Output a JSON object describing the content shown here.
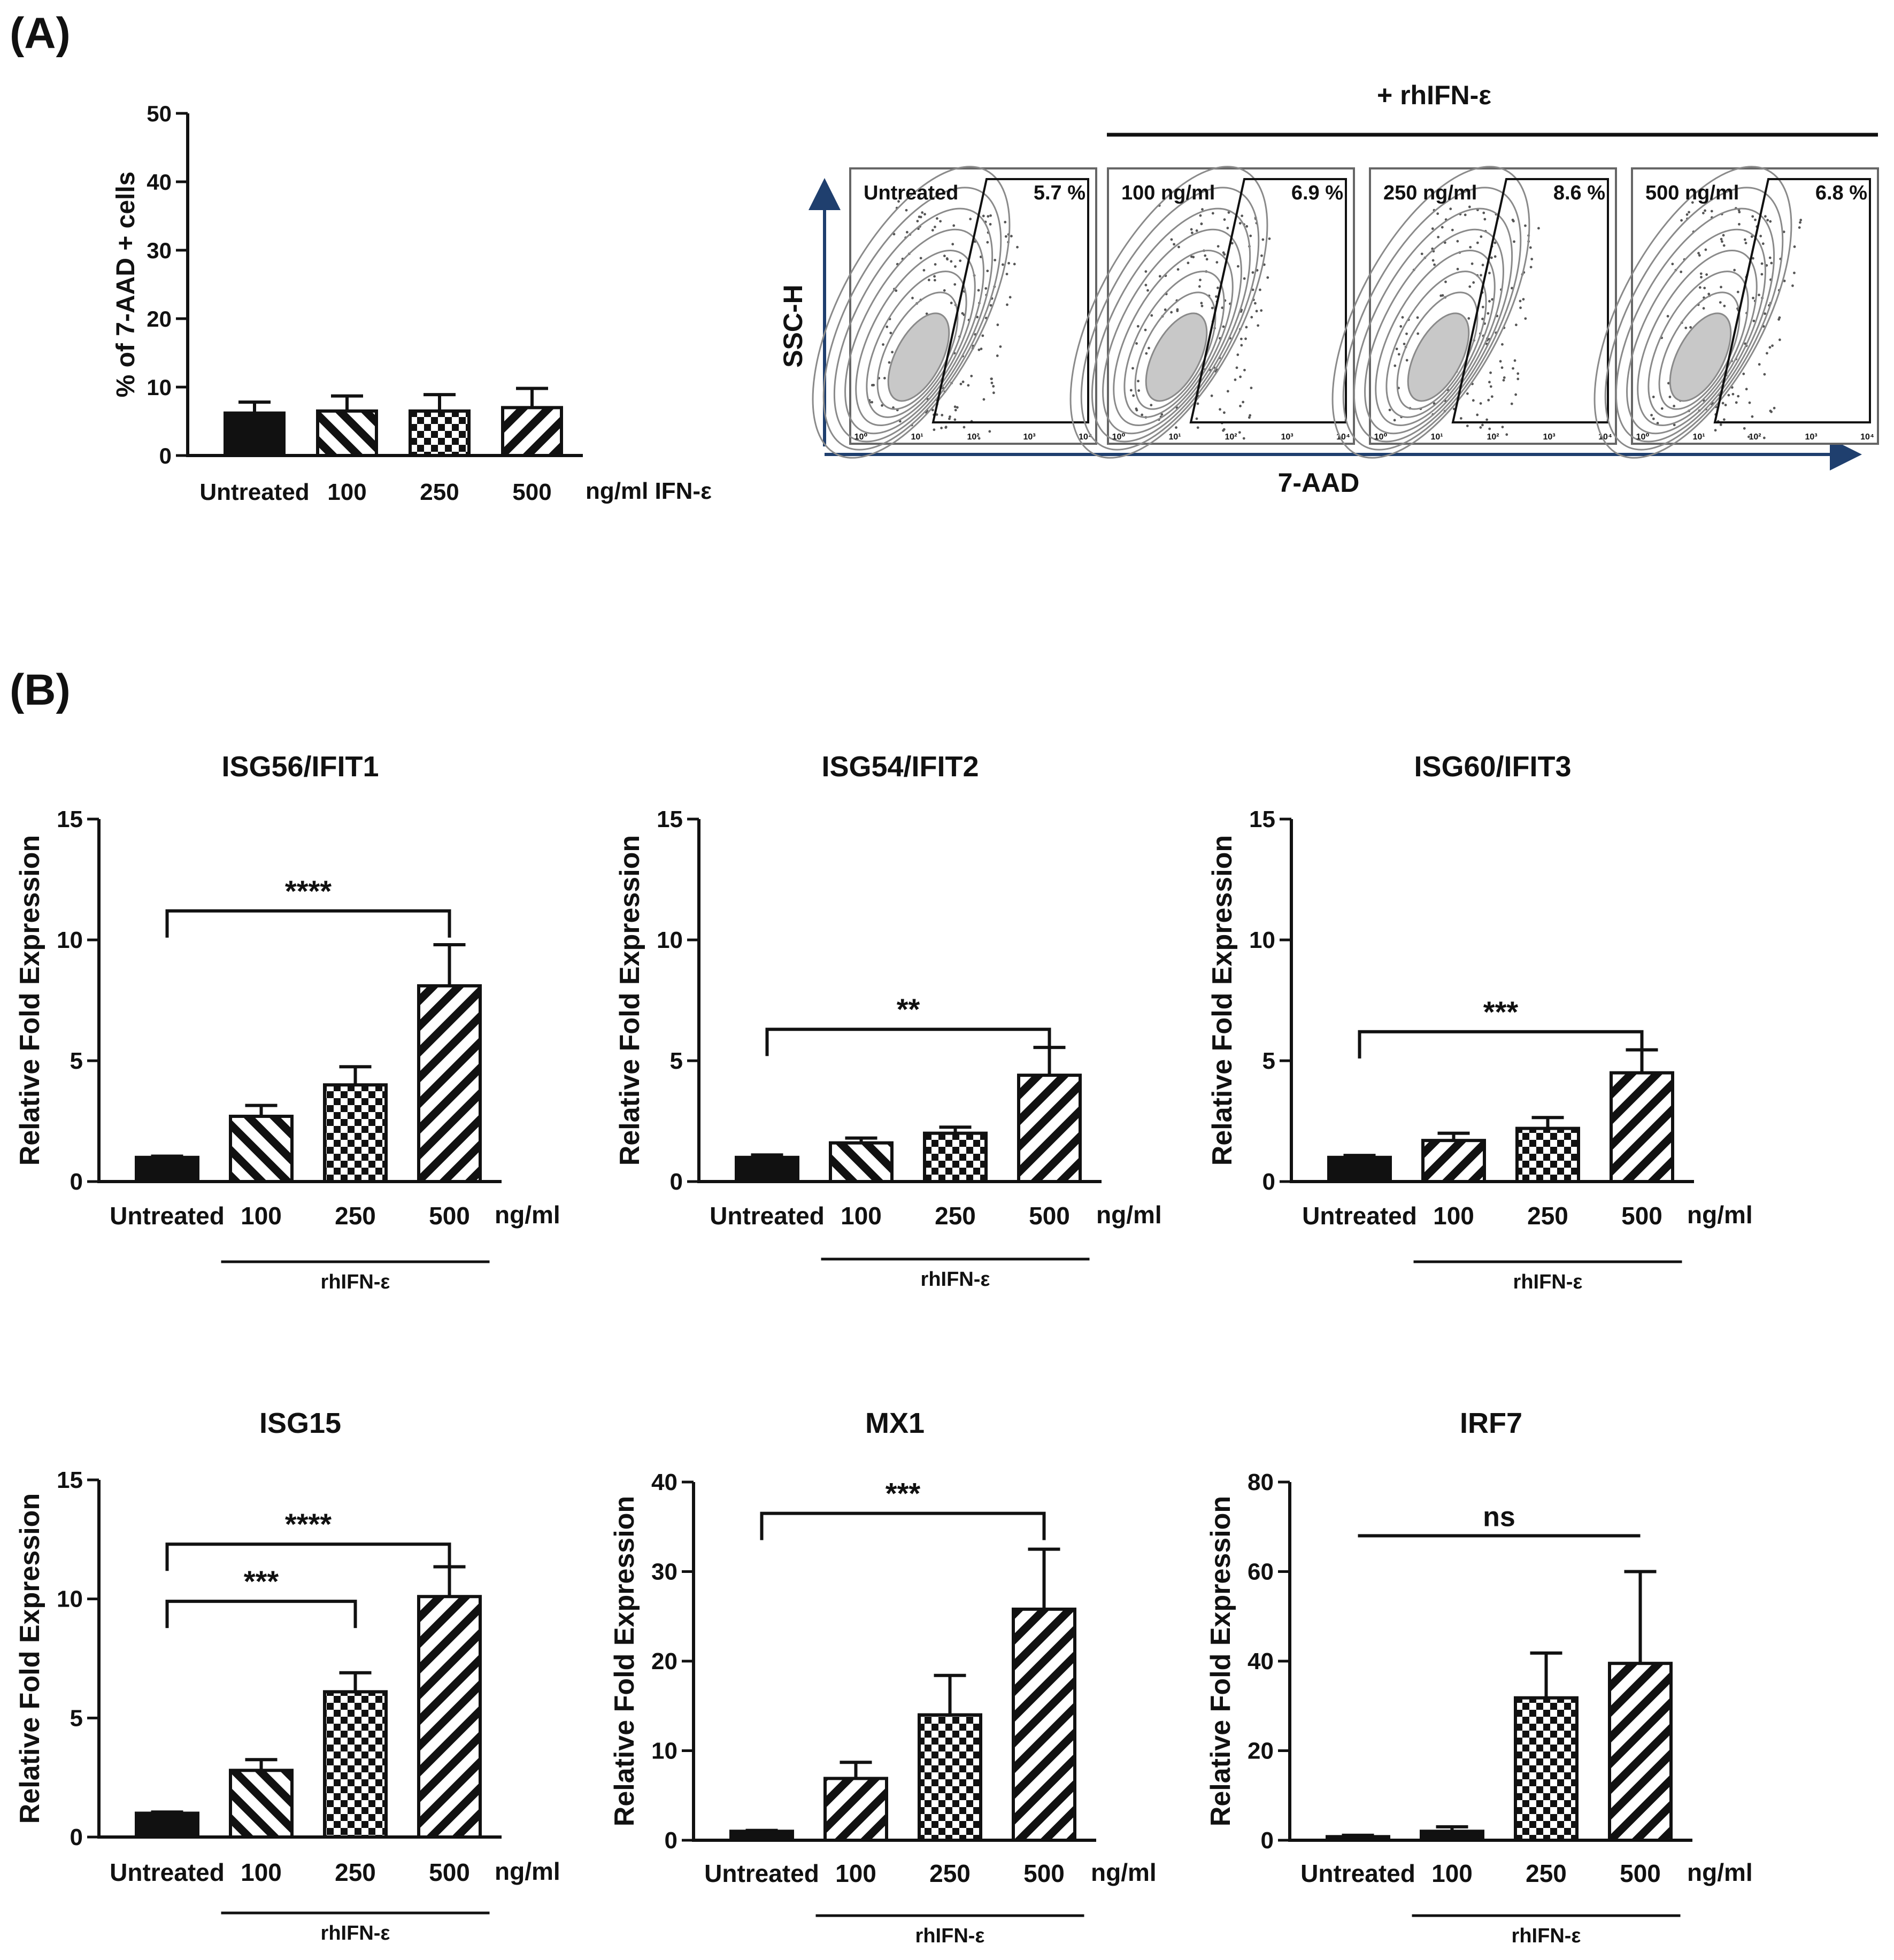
{
  "panel_labels": {
    "a": "(A)",
    "b": "(B)"
  },
  "colors": {
    "ink": "#111111",
    "axis_blue": "#1f3f6e",
    "flow_gray": "#8a8a8a"
  },
  "flow": {
    "header": "+ rhIFN-ε",
    "y_axis_label": "SSC-H",
    "x_axis_label": "7-AAD",
    "x_tick_labels": [
      "10⁰",
      "10¹",
      "10²",
      "10³",
      "10⁴"
    ],
    "plots": [
      {
        "label": "Untreated",
        "pct": "5.7 %"
      },
      {
        "label": "100 ng/ml",
        "pct": "6.9 %"
      },
      {
        "label": "250 ng/ml",
        "pct": "8.6 %"
      },
      {
        "label": "500 ng/ml",
        "pct": "6.8 %"
      }
    ]
  },
  "chart_data": [
    {
      "id": "viability",
      "type": "bar",
      "title": "",
      "categories": [
        "Untreated",
        "100",
        "250",
        "500"
      ],
      "unit_label": "ng/ml IFN-ε",
      "treatment_label": "",
      "values": [
        6.2,
        6.5,
        6.5,
        7.0
      ],
      "errors": [
        1.6,
        2.2,
        2.4,
        2.8
      ],
      "patterns": [
        "solid",
        "diag-back",
        "checker",
        "diag-fwd"
      ],
      "ylabel": "% of 7-AAD + cells",
      "ylim": [
        0,
        50
      ],
      "yticks": [
        0,
        10,
        20,
        30,
        40,
        50
      ],
      "brackets": []
    },
    {
      "id": "isg56",
      "type": "bar",
      "title": "ISG56/IFIT1",
      "categories": [
        "Untreated",
        "100",
        "250",
        "500"
      ],
      "unit_label": "ng/ml",
      "treatment_label": "rhIFN-ε",
      "values": [
        1.0,
        2.7,
        4.0,
        8.1
      ],
      "errors": [
        0.05,
        0.45,
        0.75,
        1.7
      ],
      "patterns": [
        "solid",
        "diag-back",
        "checker",
        "diag-fwd"
      ],
      "ylabel": "Relative Fold Expression",
      "ylim": [
        0,
        15
      ],
      "yticks": [
        0,
        5,
        10,
        15
      ],
      "brackets": [
        {
          "from": 0,
          "to": 3,
          "y": 11.2,
          "label": "****"
        }
      ]
    },
    {
      "id": "isg54",
      "type": "bar",
      "title": "ISG54/IFIT2",
      "categories": [
        "Untreated",
        "100",
        "250",
        "500"
      ],
      "unit_label": "ng/ml",
      "treatment_label": "rhIFN-ε",
      "values": [
        1.0,
        1.6,
        2.0,
        4.4
      ],
      "errors": [
        0.1,
        0.2,
        0.25,
        1.15
      ],
      "patterns": [
        "solid",
        "diag-back",
        "checker",
        "diag-fwd"
      ],
      "ylabel": "Relative Fold Expression",
      "ylim": [
        0,
        15
      ],
      "yticks": [
        0,
        5,
        10,
        15
      ],
      "brackets": [
        {
          "from": 0,
          "to": 3,
          "y": 6.3,
          "label": "**"
        }
      ]
    },
    {
      "id": "isg60",
      "type": "bar",
      "title": "ISG60/IFIT3",
      "categories": [
        "Untreated",
        "100",
        "250",
        "500"
      ],
      "unit_label": "ng/ml",
      "treatment_label": "rhIFN-ε",
      "values": [
        1.0,
        1.7,
        2.2,
        4.5
      ],
      "errors": [
        0.08,
        0.3,
        0.45,
        0.95
      ],
      "patterns": [
        "solid",
        "diag-fwd",
        "checker",
        "diag-fwd"
      ],
      "ylabel": "Relative Fold Expression",
      "ylim": [
        0,
        15
      ],
      "yticks": [
        0,
        5,
        10,
        15
      ],
      "brackets": [
        {
          "from": 0,
          "to": 3,
          "y": 6.2,
          "label": "***"
        }
      ]
    },
    {
      "id": "isg15",
      "type": "bar",
      "title": "ISG15",
      "categories": [
        "Untreated",
        "100",
        "250",
        "500"
      ],
      "unit_label": "ng/ml",
      "treatment_label": "rhIFN-ε",
      "values": [
        1.0,
        2.8,
        6.1,
        10.1
      ],
      "errors": [
        0.05,
        0.45,
        0.8,
        1.25
      ],
      "patterns": [
        "solid",
        "diag-back",
        "checker",
        "diag-fwd"
      ],
      "ylabel": "Relative Fold Expression",
      "ylim": [
        0,
        15
      ],
      "yticks": [
        0,
        5,
        10,
        15
      ],
      "brackets": [
        {
          "from": 0,
          "to": 2,
          "y": 9.9,
          "label": "***"
        },
        {
          "from": 0,
          "to": 3,
          "y": 12.3,
          "label": "****"
        }
      ]
    },
    {
      "id": "mx1",
      "type": "bar",
      "title": "MX1",
      "categories": [
        "Untreated",
        "100",
        "250",
        "500"
      ],
      "unit_label": "ng/ml",
      "treatment_label": "rhIFN-ε",
      "values": [
        1.0,
        6.9,
        14.0,
        25.8
      ],
      "errors": [
        0.1,
        1.8,
        4.4,
        6.7
      ],
      "patterns": [
        "solid",
        "diag-fwd",
        "checker",
        "diag-fwd"
      ],
      "ylabel": "Relative Fold Expression",
      "ylim": [
        0,
        40
      ],
      "yticks": [
        0,
        10,
        20,
        30,
        40
      ],
      "brackets": [
        {
          "from": 0,
          "to": 3,
          "y": 36.5,
          "label": "***"
        }
      ]
    },
    {
      "id": "irf7",
      "type": "bar",
      "title": "IRF7",
      "categories": [
        "Untreated",
        "100",
        "250",
        "500"
      ],
      "unit_label": "ng/ml",
      "treatment_label": "rhIFN-ε",
      "values": [
        0.8,
        2.0,
        31.8,
        39.5
      ],
      "errors": [
        0.3,
        1.0,
        10.0,
        20.5
      ],
      "patterns": [
        "solid",
        "solid",
        "checker",
        "diag-fwd"
      ],
      "ylabel": "Relative Fold Expression",
      "ylim": [
        0,
        80
      ],
      "yticks": [
        0,
        20,
        40,
        60,
        80
      ],
      "brackets": [
        {
          "from": 0,
          "to": 3,
          "y": 68,
          "label": "ns",
          "style": "line"
        }
      ]
    }
  ]
}
